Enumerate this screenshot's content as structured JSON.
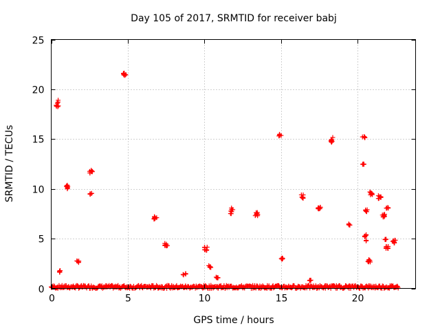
{
  "chart_data": {
    "type": "scatter",
    "title": "Day 105 of 2017, SRMTID for receiver babj",
    "xlabel": "GPS time / hours",
    "ylabel": "SRMTID / TECUs",
    "xlim": [
      0,
      23.8
    ],
    "ylim": [
      0,
      25
    ],
    "xticks": [
      0,
      5,
      10,
      15,
      20
    ],
    "yticks": [
      0,
      5,
      10,
      15,
      20,
      25
    ],
    "grid": true,
    "marker": "+",
    "color": "#ff0000",
    "clusters": [
      {
        "x": 0.4,
        "y": 18.6,
        "spread": 0.35
      },
      {
        "x": 0.55,
        "y": 1.7,
        "spread": 0.1
      },
      {
        "x": 1.0,
        "y": 10.2,
        "spread": 0.2
      },
      {
        "x": 1.75,
        "y": 2.7,
        "spread": 0.1
      },
      {
        "x": 2.6,
        "y": 11.7,
        "spread": 0.2
      },
      {
        "x": 2.6,
        "y": 9.5,
        "spread": 0.05
      },
      {
        "x": 4.8,
        "y": 21.5,
        "spread": 0.15
      },
      {
        "x": 6.8,
        "y": 7.1,
        "spread": 0.15
      },
      {
        "x": 7.5,
        "y": 4.4,
        "spread": 0.15
      },
      {
        "x": 8.7,
        "y": 1.4,
        "spread": 0.1
      },
      {
        "x": 10.1,
        "y": 4.0,
        "spread": 0.2
      },
      {
        "x": 10.35,
        "y": 2.2,
        "spread": 0.1
      },
      {
        "x": 10.85,
        "y": 1.1,
        "spread": 0.1
      },
      {
        "x": 11.8,
        "y": 7.8,
        "spread": 0.3
      },
      {
        "x": 13.4,
        "y": 7.5,
        "spread": 0.2
      },
      {
        "x": 14.95,
        "y": 15.4,
        "spread": 0.1
      },
      {
        "x": 15.1,
        "y": 3.0,
        "spread": 0.1
      },
      {
        "x": 16.4,
        "y": 9.2,
        "spread": 0.2
      },
      {
        "x": 16.95,
        "y": 0.8,
        "spread": 0.05
      },
      {
        "x": 17.5,
        "y": 8.1,
        "spread": 0.15
      },
      {
        "x": 18.3,
        "y": 14.9,
        "spread": 0.3
      },
      {
        "x": 19.5,
        "y": 6.4,
        "spread": 0.1
      },
      {
        "x": 20.4,
        "y": 15.2,
        "spread": 0.1
      },
      {
        "x": 20.4,
        "y": 12.5,
        "spread": 0.05
      },
      {
        "x": 20.6,
        "y": 7.8,
        "spread": 0.1
      },
      {
        "x": 20.55,
        "y": 5.1,
        "spread": 0.35
      },
      {
        "x": 20.75,
        "y": 2.8,
        "spread": 0.15
      },
      {
        "x": 20.9,
        "y": 9.6,
        "spread": 0.2
      },
      {
        "x": 21.45,
        "y": 9.2,
        "spread": 0.2
      },
      {
        "x": 21.7,
        "y": 7.3,
        "spread": 0.15
      },
      {
        "x": 21.8,
        "y": 4.9,
        "spread": 0.05
      },
      {
        "x": 21.95,
        "y": 8.1,
        "spread": 0.05
      },
      {
        "x": 21.95,
        "y": 4.1,
        "spread": 0.2
      },
      {
        "x": 22.4,
        "y": 4.7,
        "spread": 0.15
      }
    ],
    "baseline": {
      "x_start": 0.0,
      "x_end": 22.7,
      "y_min": 0.0,
      "y_max": 0.3
    }
  }
}
